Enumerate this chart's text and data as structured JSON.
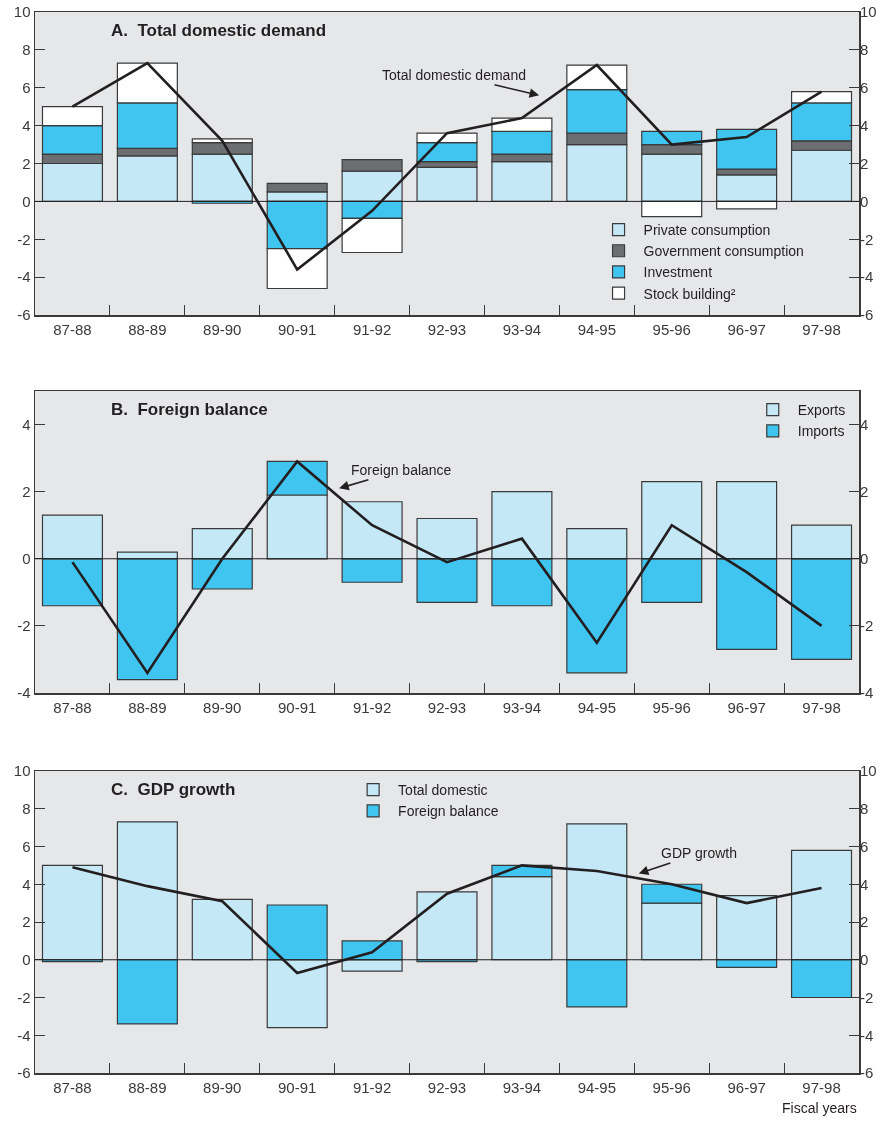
{
  "chart_data": [
    {
      "type": "bar",
      "title": "A.  Total domestic demand",
      "stacked": true,
      "categories": [
        "87-88",
        "88-89",
        "89-90",
        "90-91",
        "91-92",
        "92-93",
        "93-94",
        "94-95",
        "95-96",
        "96-97",
        "97-98"
      ],
      "series": [
        {
          "name": "Private consumption",
          "color": "#c5e8f7",
          "values": [
            2.0,
            2.4,
            2.5,
            0.5,
            1.6,
            1.8,
            2.1,
            3.0,
            2.5,
            1.4,
            2.7
          ]
        },
        {
          "name": "Government consumption",
          "color": "#6d6e71",
          "values": [
            0.5,
            0.4,
            0.6,
            0.45,
            0.6,
            0.3,
            0.4,
            0.6,
            0.5,
            0.3,
            0.5
          ]
        },
        {
          "name": "Investment",
          "color": "#40c4f0",
          "values": [
            1.5,
            2.4,
            -0.1,
            -2.5,
            -0.9,
            1.0,
            1.2,
            2.3,
            0.7,
            2.1,
            2.0
          ]
        },
        {
          "name": "Stock building²",
          "color": "#ffffff",
          "values": [
            1.0,
            2.1,
            0.2,
            -2.1,
            -1.8,
            0.5,
            0.7,
            1.3,
            -0.8,
            -0.4,
            0.6
          ]
        },
        {
          "name": "Total domestic demand",
          "type": "line",
          "color": "#231f20",
          "values": [
            5.0,
            7.3,
            3.2,
            -3.6,
            -0.5,
            3.6,
            4.4,
            7.2,
            3.0,
            3.4,
            5.8
          ]
        }
      ],
      "ylim": [
        -6,
        10
      ],
      "yticks": [
        -6,
        -4,
        -2,
        0,
        2,
        4,
        6,
        8,
        10
      ],
      "y2lim": [
        -6,
        10
      ],
      "y2ticks": [
        -6,
        -4,
        -2,
        0,
        2,
        4,
        6,
        8,
        10
      ],
      "ref_lines": [
        {
          "axis": "y",
          "value": 0,
          "color": "#231f20"
        }
      ],
      "legend": "bottom right"
    },
    {
      "type": "bar",
      "title": "B.  Foreign balance",
      "stacked": true,
      "categories": [
        "87-88",
        "88-89",
        "89-90",
        "90-91",
        "91-92",
        "92-93",
        "93-94",
        "94-95",
        "95-96",
        "96-97",
        "97-98"
      ],
      "series": [
        {
          "name": "Exports",
          "color": "#c5e8f7",
          "values": [
            1.3,
            0.2,
            0.9,
            1.9,
            1.7,
            1.2,
            2.0,
            0.9,
            2.3,
            2.3,
            1.0
          ]
        },
        {
          "name": "Imports",
          "color": "#40c4f0",
          "values": [
            -1.4,
            -3.6,
            -0.9,
            1.0,
            -0.7,
            -1.3,
            -1.4,
            -3.4,
            -1.3,
            -2.7,
            -3.0
          ]
        },
        {
          "name": "Foreign balance",
          "type": "line",
          "color": "#231f20",
          "values": [
            -0.1,
            -3.4,
            0.0,
            2.9,
            1.0,
            -0.1,
            0.6,
            -2.5,
            1.0,
            -0.4,
            -2.0
          ]
        }
      ],
      "ylim": [
        -4,
        5
      ],
      "yticks": [
        -4,
        -2,
        0,
        2,
        4
      ],
      "y2lim": [
        -4,
        5
      ],
      "y2ticks": [
        -4,
        -2,
        0,
        2,
        4
      ],
      "ref_lines": [
        {
          "axis": "y",
          "value": 0,
          "color": "#231f20"
        }
      ],
      "legend": "top right"
    },
    {
      "type": "bar",
      "title": "C.  GDP growth",
      "xlabel": "Fiscal years",
      "stacked": true,
      "categories": [
        "87-88",
        "88-89",
        "89-90",
        "90-91",
        "91-92",
        "92-93",
        "93-94",
        "94-95",
        "95-96",
        "96-97",
        "97-98"
      ],
      "series": [
        {
          "name": "Total domestic",
          "color": "#c5e8f7",
          "values": [
            5.0,
            7.3,
            3.2,
            -3.6,
            -0.6,
            3.6,
            4.4,
            7.2,
            3.0,
            3.4,
            5.8
          ]
        },
        {
          "name": "Foreign balance",
          "color": "#40c4f0",
          "values": [
            -0.1,
            -3.4,
            null,
            2.9,
            1.0,
            -0.1,
            0.6,
            -2.5,
            1.0,
            -0.4,
            -2.0
          ]
        },
        {
          "name": "GDP growth",
          "type": "line",
          "color": "#231f20",
          "values": [
            4.9,
            3.9,
            3.1,
            -0.7,
            0.4,
            3.5,
            5.0,
            4.7,
            4.0,
            3.0,
            3.8
          ]
        }
      ],
      "ylim": [
        -6,
        10
      ],
      "yticks": [
        -6,
        -4,
        -2,
        0,
        2,
        4,
        6,
        8,
        10
      ],
      "y2lim": [
        -6,
        10
      ],
      "y2ticks": [
        -6,
        -4,
        -2,
        0,
        2,
        4,
        6,
        8,
        10
      ],
      "ref_lines": [
        {
          "axis": "y",
          "value": 0,
          "color": "#231f20"
        }
      ],
      "legend": "top"
    }
  ]
}
